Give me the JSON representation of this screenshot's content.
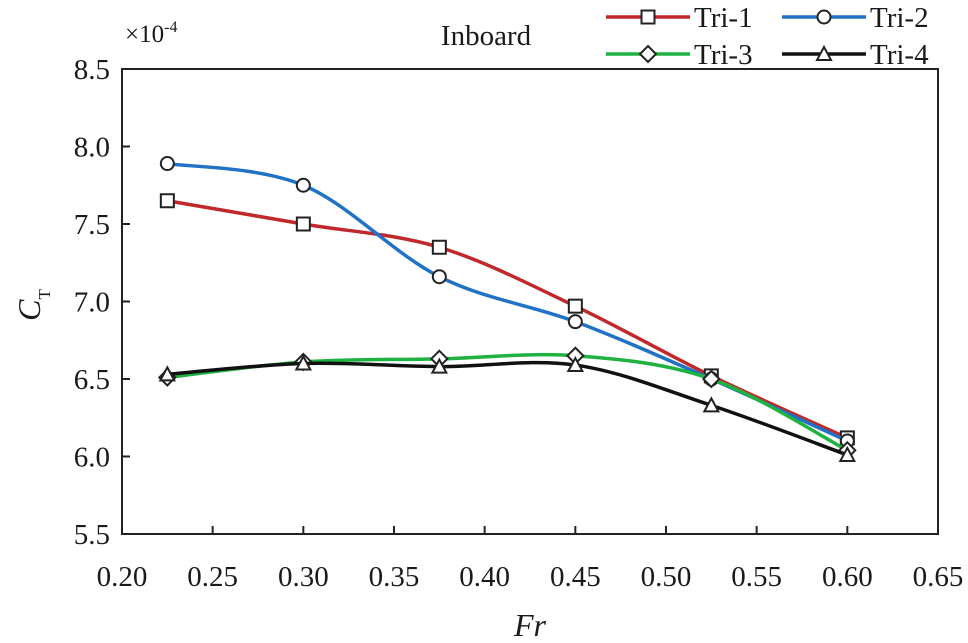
{
  "chart_data": {
    "type": "line",
    "title": "Inboard",
    "xlabel": "Fr",
    "ylabel": "C",
    "ylabel_subscript": "T",
    "y_scale_label": "×10",
    "y_scale_exponent": "-4",
    "xlim": [
      0.2,
      0.65
    ],
    "ylim": [
      5.5,
      8.5
    ],
    "x_ticks": [
      0.2,
      0.25,
      0.3,
      0.35,
      0.4,
      0.45,
      0.5,
      0.55,
      0.6,
      0.65
    ],
    "x_tick_labels": [
      "0.20",
      "0.25",
      "0.30",
      "0.35",
      "0.40",
      "0.45",
      "0.50",
      "0.55",
      "0.60",
      "0.65"
    ],
    "y_ticks": [
      5.5,
      6.0,
      6.5,
      7.0,
      7.5,
      8.0,
      8.5
    ],
    "y_tick_labels": [
      "5.5",
      "6.0",
      "6.5",
      "7.0",
      "7.5",
      "8.0",
      "8.5"
    ],
    "grid": false,
    "legend_position": "top-right",
    "x": [
      0.225,
      0.3,
      0.375,
      0.45,
      0.525,
      0.6
    ],
    "series": [
      {
        "name": "Tri-1",
        "marker": "square",
        "color": "#c0282b",
        "values": [
          7.65,
          7.5,
          7.35,
          6.97,
          6.52,
          6.12
        ]
      },
      {
        "name": "Tri-2",
        "marker": "circle",
        "color": "#1f72c6",
        "values": [
          7.89,
          7.75,
          7.16,
          6.87,
          6.5,
          6.1
        ]
      },
      {
        "name": "Tri-3",
        "marker": "diamond",
        "color": "#1fb240",
        "values": [
          6.51,
          6.61,
          6.63,
          6.65,
          6.5,
          6.04
        ]
      },
      {
        "name": "Tri-4",
        "marker": "triangle",
        "color": "#111111",
        "values": [
          6.53,
          6.6,
          6.58,
          6.59,
          6.33,
          6.01
        ]
      }
    ]
  }
}
